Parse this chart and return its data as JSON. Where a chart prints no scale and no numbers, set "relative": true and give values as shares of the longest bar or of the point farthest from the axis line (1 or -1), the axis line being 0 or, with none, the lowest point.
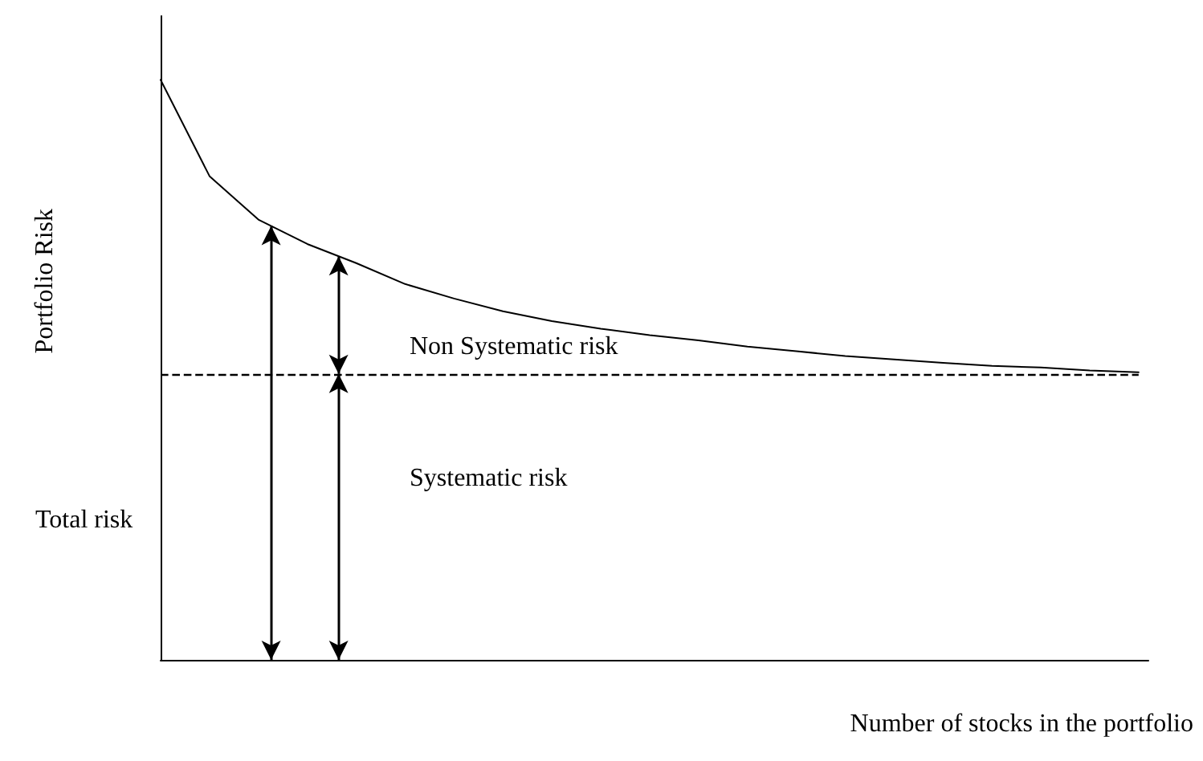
{
  "chart_data": {
    "type": "line",
    "relative": true,
    "xlabel": "Number of stocks in the portfolio",
    "ylabel": "Portfolio Risk",
    "categories": [
      null,
      null,
      null,
      null,
      null,
      null,
      null,
      null,
      null,
      null,
      null,
      null,
      null,
      null,
      null,
      null,
      null,
      null,
      null,
      null,
      null
    ],
    "series": [
      {
        "color": "#000000",
        "values": [
          1,
          0.834,
          0.759,
          0.717,
          0.684,
          0.648,
          0.623,
          0.601,
          0.584,
          0.571,
          0.56,
          0.551,
          0.54,
          0.532,
          0.524,
          0.518,
          0.512,
          0.507,
          0.504,
          0.499,
          0.496
        ]
      }
    ],
    "ref_lines": [
      {
        "axis": "y",
        "value": 0.493,
        "line_style": "dashed",
        "color": "#000000"
      }
    ],
    "annotations": [
      "Non Systematic risk",
      "Systematic risk",
      "Total risk"
    ],
    "marker": "none",
    "line_style": "solid",
    "grid": false
  }
}
